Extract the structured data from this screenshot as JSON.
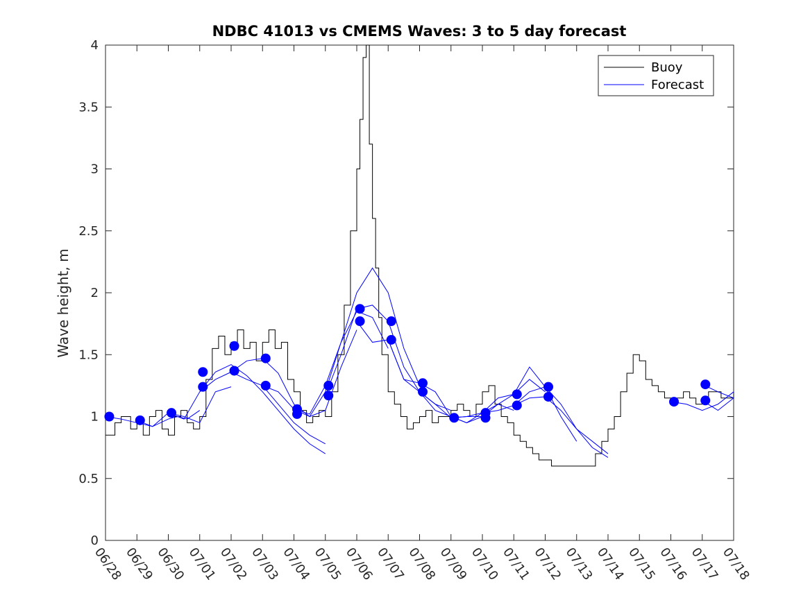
{
  "chart_data": {
    "type": "line",
    "title": "NDBC 41013 vs CMEMS Waves: 3 to 5 day forecast",
    "xlabel": "",
    "ylabel": "Wave height, m",
    "x_tick_labels": [
      "06/28",
      "06/29",
      "06/30",
      "07/01",
      "07/02",
      "07/03",
      "07/04",
      "07/05",
      "07/06",
      "07/07",
      "07/08",
      "07/09",
      "07/10",
      "07/11",
      "07/12",
      "07/13",
      "07/14",
      "07/15",
      "07/16",
      "07/17",
      "07/18"
    ],
    "y_tick_labels": [
      "0",
      "0.5",
      "1",
      "1.5",
      "2",
      "2.5",
      "3",
      "3.5",
      "4"
    ],
    "xlim_days": [
      0,
      20
    ],
    "ylim": [
      0,
      4
    ],
    "grid": false,
    "legend": {
      "position": "top-right",
      "entries": [
        "Buoy",
        "Forecast"
      ]
    },
    "colors": {
      "buoy": "#000000",
      "forecast": "#0000ff",
      "markers": "#0000ff"
    },
    "series": [
      {
        "name": "Buoy",
        "note_x": "days from 06/28 00:00",
        "x": [
          0,
          0.3,
          0.5,
          0.8,
          1.0,
          1.2,
          1.4,
          1.6,
          1.8,
          2.0,
          2.2,
          2.4,
          2.6,
          2.8,
          3.0,
          3.2,
          3.4,
          3.6,
          3.8,
          4.0,
          4.2,
          4.4,
          4.6,
          4.8,
          5.0,
          5.2,
          5.4,
          5.6,
          5.8,
          6.0,
          6.2,
          6.4,
          6.6,
          6.8,
          7.0,
          7.2,
          7.4,
          7.6,
          7.8,
          8.0,
          8.1,
          8.2,
          8.3,
          8.4,
          8.5,
          8.6,
          8.7,
          8.8,
          9.0,
          9.2,
          9.4,
          9.6,
          9.8,
          10.0,
          10.2,
          10.4,
          10.6,
          10.8,
          11.0,
          11.2,
          11.4,
          11.6,
          11.8,
          12.0,
          12.2,
          12.4,
          12.6,
          12.8,
          13.0,
          13.2,
          13.4,
          13.6,
          13.8,
          14.0,
          14.2,
          14.4,
          14.6,
          14.8,
          15.0,
          15.2,
          15.4,
          15.6,
          15.8,
          16.0,
          16.2,
          16.4,
          16.6,
          16.8,
          17.0,
          17.2,
          17.4,
          17.6,
          17.8,
          18.0,
          18.2,
          18.4,
          18.6,
          18.8,
          19.0,
          19.2,
          19.4,
          19.6,
          19.8,
          20.0
        ],
        "values": [
          0.85,
          0.95,
          1.0,
          0.9,
          0.95,
          0.85,
          1.0,
          1.05,
          0.9,
          0.85,
          1.0,
          1.05,
          0.95,
          0.9,
          1.0,
          1.3,
          1.55,
          1.65,
          1.5,
          1.6,
          1.7,
          1.55,
          1.6,
          1.45,
          1.6,
          1.7,
          1.55,
          1.6,
          1.3,
          1.2,
          1.05,
          0.95,
          1.0,
          1.05,
          1.0,
          1.2,
          1.5,
          1.9,
          2.5,
          3.0,
          3.4,
          3.9,
          4.0,
          3.2,
          2.6,
          2.2,
          1.8,
          1.5,
          1.2,
          1.1,
          1.0,
          0.9,
          0.95,
          1.0,
          1.05,
          0.95,
          1.0,
          1.0,
          1.05,
          1.1,
          1.05,
          1.0,
          1.1,
          1.2,
          1.25,
          1.1,
          1.0,
          0.95,
          0.85,
          0.8,
          0.75,
          0.7,
          0.65,
          0.65,
          0.6,
          0.6,
          0.6,
          0.6,
          0.6,
          0.6,
          0.6,
          0.7,
          0.8,
          0.9,
          1.0,
          1.2,
          1.35,
          1.5,
          1.45,
          1.3,
          1.25,
          1.2,
          1.15,
          1.1,
          1.15,
          1.2,
          1.15,
          1.1,
          1.15,
          1.2,
          1.2,
          1.15,
          1.15,
          1.2
        ]
      },
      {
        "name": "Forecast",
        "note": "multiple forecast runs, each drawn in blue",
        "runs": [
          {
            "x": [
              0,
              0.5,
              1.0,
              1.5,
              2.0,
              2.3,
              2.6,
              3.0
            ],
            "values": [
              1.0,
              0.98,
              0.95,
              0.92,
              0.98,
              1.0,
              0.98,
              1.05
            ]
          },
          {
            "x": [
              1.0,
              1.5,
              2.0,
              2.5,
              3.0,
              3.5,
              4.0
            ],
            "values": [
              0.97,
              0.92,
              1.03,
              1.0,
              0.95,
              1.2,
              1.24
            ]
          },
          {
            "x": [
              2.0,
              2.5,
              3.0,
              3.5,
              4.0,
              4.5,
              5.0,
              5.5,
              6.0,
              6.5,
              7.0
            ],
            "values": [
              1.03,
              0.98,
              1.2,
              1.3,
              1.36,
              1.3,
              1.25,
              1.1,
              0.95,
              0.85,
              0.78
            ]
          },
          {
            "x": [
              3.0,
              3.5,
              4.0,
              4.5,
              5.0,
              5.5,
              6.0,
              6.5,
              7.0
            ],
            "values": [
              1.2,
              1.36,
              1.42,
              1.33,
              1.2,
              1.05,
              0.9,
              0.78,
              0.7
            ]
          },
          {
            "x": [
              4.0,
              4.5,
              5.0,
              5.5,
              6.0,
              6.5,
              7.0,
              7.5,
              8.0
            ],
            "values": [
              1.36,
              1.45,
              1.47,
              1.35,
              1.1,
              1.0,
              1.05,
              1.4,
              1.7
            ]
          },
          {
            "x": [
              5.0,
              5.5,
              6.0,
              6.5,
              7.0,
              7.5,
              8.0,
              8.5,
              9.0
            ],
            "values": [
              1.25,
              1.2,
              1.06,
              1.0,
              1.2,
              1.6,
              1.85,
              1.8,
              1.55
            ]
          },
          {
            "x": [
              6.0,
              6.5,
              7.0,
              7.5,
              8.0,
              8.5,
              9.0,
              9.5,
              10.0
            ],
            "values": [
              1.06,
              1.02,
              1.25,
              1.6,
              2.0,
              2.2,
              2.0,
              1.55,
              1.25
            ]
          },
          {
            "x": [
              7.0,
              7.5,
              8.0,
              8.5,
              9.0,
              9.5,
              10.0,
              10.5,
              11.0
            ],
            "values": [
              1.17,
              1.5,
              1.87,
              1.9,
              1.77,
              1.4,
              1.2,
              1.1,
              1.05
            ]
          },
          {
            "x": [
              8.0,
              8.5,
              9.0,
              9.5,
              10.0,
              10.5,
              11.0,
              11.5,
              12.0
            ],
            "values": [
              1.77,
              1.6,
              1.62,
              1.3,
              1.2,
              1.05,
              1.0,
              0.95,
              1.0
            ]
          },
          {
            "x": [
              9.0,
              9.5,
              10.0,
              10.5,
              11.0,
              11.5,
              12.0,
              12.5,
              13.0
            ],
            "values": [
              1.62,
              1.3,
              1.27,
              1.2,
              1.0,
              0.95,
              1.03,
              1.1,
              1.05
            ]
          },
          {
            "x": [
              10.0,
              10.5,
              11.0,
              11.5,
              12.0,
              12.5,
              13.0,
              13.5,
              14.0
            ],
            "values": [
              1.2,
              1.1,
              0.99,
              1.0,
              1.03,
              1.15,
              1.18,
              1.3,
              1.2
            ]
          },
          {
            "x": [
              11.0,
              11.5,
              12.0,
              12.5,
              13.0,
              13.5,
              14.0,
              14.5,
              15.0
            ],
            "values": [
              0.99,
              1.0,
              1.0,
              1.1,
              1.18,
              1.4,
              1.24,
              1.0,
              0.8
            ]
          },
          {
            "x": [
              12.0,
              12.5,
              13.0,
              13.5,
              14.0,
              14.5,
              15.0,
              15.5,
              16.0
            ],
            "values": [
              1.03,
              1.05,
              1.09,
              1.2,
              1.24,
              1.1,
              0.9,
              0.75,
              0.67
            ]
          },
          {
            "x": [
              13.0,
              13.5,
              14.0,
              14.5,
              15.0,
              15.5,
              16.0
            ],
            "values": [
              1.09,
              1.15,
              1.16,
              1.05,
              0.9,
              0.8,
              0.7
            ]
          },
          {
            "x": [
              18.0,
              18.5,
              19.0,
              19.5,
              20.0
            ],
            "values": [
              1.12,
              1.1,
              1.05,
              1.1,
              1.2
            ]
          },
          {
            "x": [
              19.0,
              19.5,
              20.0
            ],
            "values": [
              1.26,
              1.2,
              1.15
            ]
          },
          {
            "x": [
              19.0,
              19.5,
              20.0
            ],
            "values": [
              1.13,
              1.05,
              1.15
            ]
          }
        ],
        "markers": {
          "x": [
            0.12,
            1.1,
            2.1,
            3.1,
            3.1,
            4.1,
            4.1,
            5.1,
            5.1,
            6.1,
            6.1,
            7.1,
            7.1,
            8.1,
            8.1,
            9.1,
            9.1,
            10.1,
            10.1,
            11.1,
            12.1,
            12.1,
            13.1,
            13.1,
            14.1,
            14.1,
            18.1,
            19.1,
            19.1
          ],
          "values": [
            1.0,
            0.97,
            1.03,
            1.36,
            1.24,
            1.57,
            1.37,
            1.47,
            1.25,
            1.06,
            1.02,
            1.25,
            1.17,
            1.87,
            1.77,
            1.77,
            1.62,
            1.27,
            1.2,
            0.99,
            1.03,
            0.99,
            1.18,
            1.09,
            1.24,
            1.16,
            1.12,
            1.26,
            1.13
          ]
        }
      }
    ]
  }
}
